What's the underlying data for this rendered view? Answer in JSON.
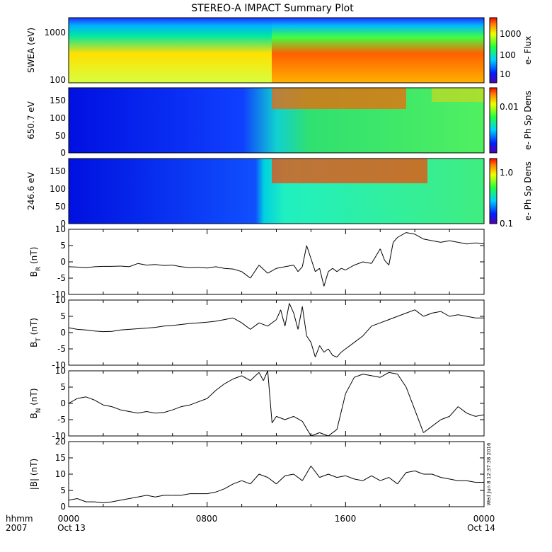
{
  "title": "STEREO-A IMPACT Summary Plot",
  "time_axis": {
    "corner_label_1": "hhmm",
    "corner_label_2": "2007",
    "ticks": [
      {
        "hhmm": "0000",
        "date": "Oct 13"
      },
      {
        "hhmm": "0800",
        "date": ""
      },
      {
        "hhmm": "1600",
        "date": ""
      },
      {
        "hhmm": "0000",
        "date": "Oct 14"
      }
    ]
  },
  "timestamp": "Wed Jun  8 12:37:38 2016",
  "chart_data": [
    {
      "type": "heatmap",
      "ylabel": "SWEA (eV)",
      "scale": "log",
      "ylim": [
        100,
        2000
      ],
      "yticks": [
        "1000",
        "100"
      ],
      "colorbar": {
        "label": "e- Flux",
        "scale": "log",
        "ticks": [
          "1000",
          "100",
          "10"
        ]
      },
      "description_values": {
        "low_energy_flux_high_after": "1000"
      },
      "x_range_hours": [
        0,
        24
      ]
    },
    {
      "type": "heatmap",
      "ylabel": "650.7 eV",
      "ylim": [
        0,
        180
      ],
      "yticks": [
        "150",
        "100",
        "50",
        "0"
      ],
      "colorbar": {
        "label": "e- Ph Sp Dens",
        "scale": "log",
        "ticks": [
          "0.01"
        ]
      }
    },
    {
      "type": "heatmap",
      "ylabel": "246.6 eV",
      "ylim": [
        0,
        180
      ],
      "yticks": [
        "150",
        "100",
        "50",
        "0"
      ],
      "colorbar": {
        "label": "e- Ph Sp Dens",
        "scale": "log",
        "ticks": [
          "1.0",
          "0.1"
        ]
      }
    },
    {
      "type": "line",
      "ylabel": "B",
      "ylabel_sub": "R",
      "ylabel_unit": "(nT)",
      "ylim": [
        -10,
        10
      ],
      "yticks": [
        "10",
        "5",
        "0",
        "-5",
        "-10"
      ],
      "x_hours": [
        0,
        0.5,
        1,
        1.5,
        2,
        2.5,
        3,
        3.5,
        4,
        4.5,
        5,
        5.5,
        6,
        6.5,
        7,
        7.5,
        8,
        8.5,
        9,
        9.5,
        10,
        10.5,
        11,
        11.5,
        12,
        12.5,
        13,
        13.25,
        13.5,
        13.75,
        14,
        14.25,
        14.5,
        14.75,
        15,
        15.25,
        15.5,
        15.75,
        16,
        16.5,
        17,
        17.5,
        18,
        18.25,
        18.5,
        18.75,
        19,
        19.5,
        20,
        20.5,
        21,
        21.5,
        22,
        22.5,
        23,
        23.5,
        24
      ],
      "y": [
        -1.5,
        -1.6,
        -1.8,
        -1.5,
        -1.4,
        -1.4,
        -1.3,
        -1.5,
        -0.5,
        -1.0,
        -0.8,
        -1.1,
        -1.0,
        -1.5,
        -1.8,
        -1.7,
        -1.9,
        -1.5,
        -2.0,
        -2.2,
        -3.0,
        -5.0,
        -1.0,
        -3.5,
        -2.0,
        -1.5,
        -1.0,
        -3.0,
        -1.5,
        5.0,
        1.0,
        -3.0,
        -2.0,
        -7.5,
        -3.0,
        -2.0,
        -3.0,
        -2.0,
        -2.5,
        -1.0,
        0.0,
        -0.5,
        4.0,
        0.5,
        -1.0,
        6.0,
        7.5,
        9.0,
        8.5,
        7.0,
        6.5,
        6.0,
        6.5,
        6.0,
        5.5,
        5.8,
        5.5
      ]
    },
    {
      "type": "line",
      "ylabel": "B",
      "ylabel_sub": "T",
      "ylabel_unit": "(nT)",
      "ylim": [
        -10,
        10
      ],
      "yticks": [
        "10",
        "5",
        "0",
        "-5",
        "-10"
      ],
      "x_hours": [
        0,
        0.5,
        1,
        1.5,
        2,
        2.5,
        3,
        3.5,
        4,
        4.5,
        5,
        5.5,
        6,
        6.5,
        7,
        7.5,
        8,
        8.5,
        9,
        9.5,
        10,
        10.5,
        11,
        11.5,
        12,
        12.25,
        12.5,
        12.75,
        13,
        13.25,
        13.5,
        13.75,
        14,
        14.25,
        14.5,
        14.75,
        15,
        15.25,
        15.5,
        15.75,
        16,
        16.5,
        17,
        17.5,
        18,
        18.5,
        19,
        19.5,
        20,
        20.5,
        21,
        21.5,
        22,
        22.5,
        23,
        23.5,
        24
      ],
      "y": [
        1.5,
        1.0,
        0.8,
        0.5,
        0.3,
        0.4,
        0.8,
        1.0,
        1.2,
        1.4,
        1.6,
        2.0,
        2.2,
        2.5,
        2.8,
        3.0,
        3.2,
        3.5,
        4.0,
        4.5,
        3.0,
        1.0,
        3.0,
        2.0,
        4.0,
        7.0,
        2.0,
        9.0,
        6.0,
        1.0,
        8.0,
        -1.0,
        -3.0,
        -7.5,
        -4.0,
        -6.0,
        -5.0,
        -7.0,
        -7.5,
        -6.0,
        -5.0,
        -3.0,
        -1.0,
        2.0,
        3.0,
        4.0,
        5.0,
        6.0,
        7.0,
        5.0,
        6.0,
        6.5,
        5.0,
        5.5,
        5.0,
        4.5,
        4.5
      ]
    },
    {
      "type": "line",
      "ylabel": "B",
      "ylabel_sub": "N",
      "ylabel_unit": "(nT)",
      "ylim": [
        -10,
        10
      ],
      "yticks": [
        "10",
        "5",
        "0",
        "-5",
        "-10"
      ],
      "x_hours": [
        0,
        0.5,
        1,
        1.5,
        2,
        2.5,
        3,
        3.5,
        4,
        4.5,
        5,
        5.5,
        6,
        6.5,
        7,
        7.5,
        8,
        8.5,
        9,
        9.5,
        10,
        10.5,
        11,
        11.25,
        11.5,
        11.75,
        12,
        12.5,
        13,
        13.5,
        14,
        14.5,
        15,
        15.5,
        16,
        16.5,
        17,
        17.5,
        18,
        18.5,
        19,
        19.5,
        20,
        20.5,
        21,
        21.5,
        22,
        22.5,
        23,
        23.5,
        24
      ],
      "y": [
        0.0,
        1.5,
        2.0,
        1.0,
        -0.5,
        -1.0,
        -2.0,
        -2.5,
        -3.0,
        -2.5,
        -3.0,
        -2.8,
        -2.0,
        -1.0,
        -0.5,
        0.5,
        1.5,
        4.0,
        6.0,
        7.5,
        8.5,
        7.0,
        9.5,
        7.0,
        10.0,
        -6.0,
        -4.0,
        -5.0,
        -4.0,
        -5.5,
        -10.0,
        -9.0,
        -10.0,
        -8.0,
        3.0,
        8.0,
        9.0,
        8.5,
        8.0,
        9.5,
        9.0,
        5.0,
        -2.0,
        -9.0,
        -7.0,
        -5.0,
        -4.0,
        -1.0,
        -3.0,
        -4.0,
        -3.5
      ]
    },
    {
      "type": "line",
      "ylabel": "|B|",
      "ylabel_sub": "",
      "ylabel_unit": "(nT)",
      "ylim": [
        0,
        20
      ],
      "yticks": [
        "20",
        "15",
        "10",
        "5",
        "0"
      ],
      "x_hours": [
        0,
        0.5,
        1,
        1.5,
        2,
        2.5,
        3,
        3.5,
        4,
        4.5,
        5,
        5.5,
        6,
        6.5,
        7,
        7.5,
        8,
        8.5,
        9,
        9.5,
        10,
        10.5,
        11,
        11.5,
        12,
        12.5,
        13,
        13.5,
        14,
        14.5,
        15,
        15.5,
        16,
        16.5,
        17,
        17.5,
        18,
        18.5,
        19,
        19.5,
        20,
        20.5,
        21,
        21.5,
        22,
        22.5,
        23,
        23.5,
        24
      ],
      "y": [
        2.0,
        2.5,
        1.5,
        1.5,
        1.2,
        1.5,
        2.0,
        2.5,
        3.0,
        3.5,
        3.0,
        3.5,
        3.5,
        3.5,
        4.0,
        4.0,
        4.0,
        4.5,
        5.5,
        7.0,
        8.0,
        7.0,
        10.0,
        9.0,
        7.0,
        9.5,
        10.0,
        8.0,
        12.5,
        9.0,
        10.0,
        9.0,
        9.5,
        8.5,
        8.0,
        9.5,
        8.0,
        9.0,
        7.0,
        10.5,
        11.0,
        10.0,
        10.0,
        9.0,
        8.5,
        8.0,
        8.0,
        7.5,
        7.5
      ]
    }
  ]
}
